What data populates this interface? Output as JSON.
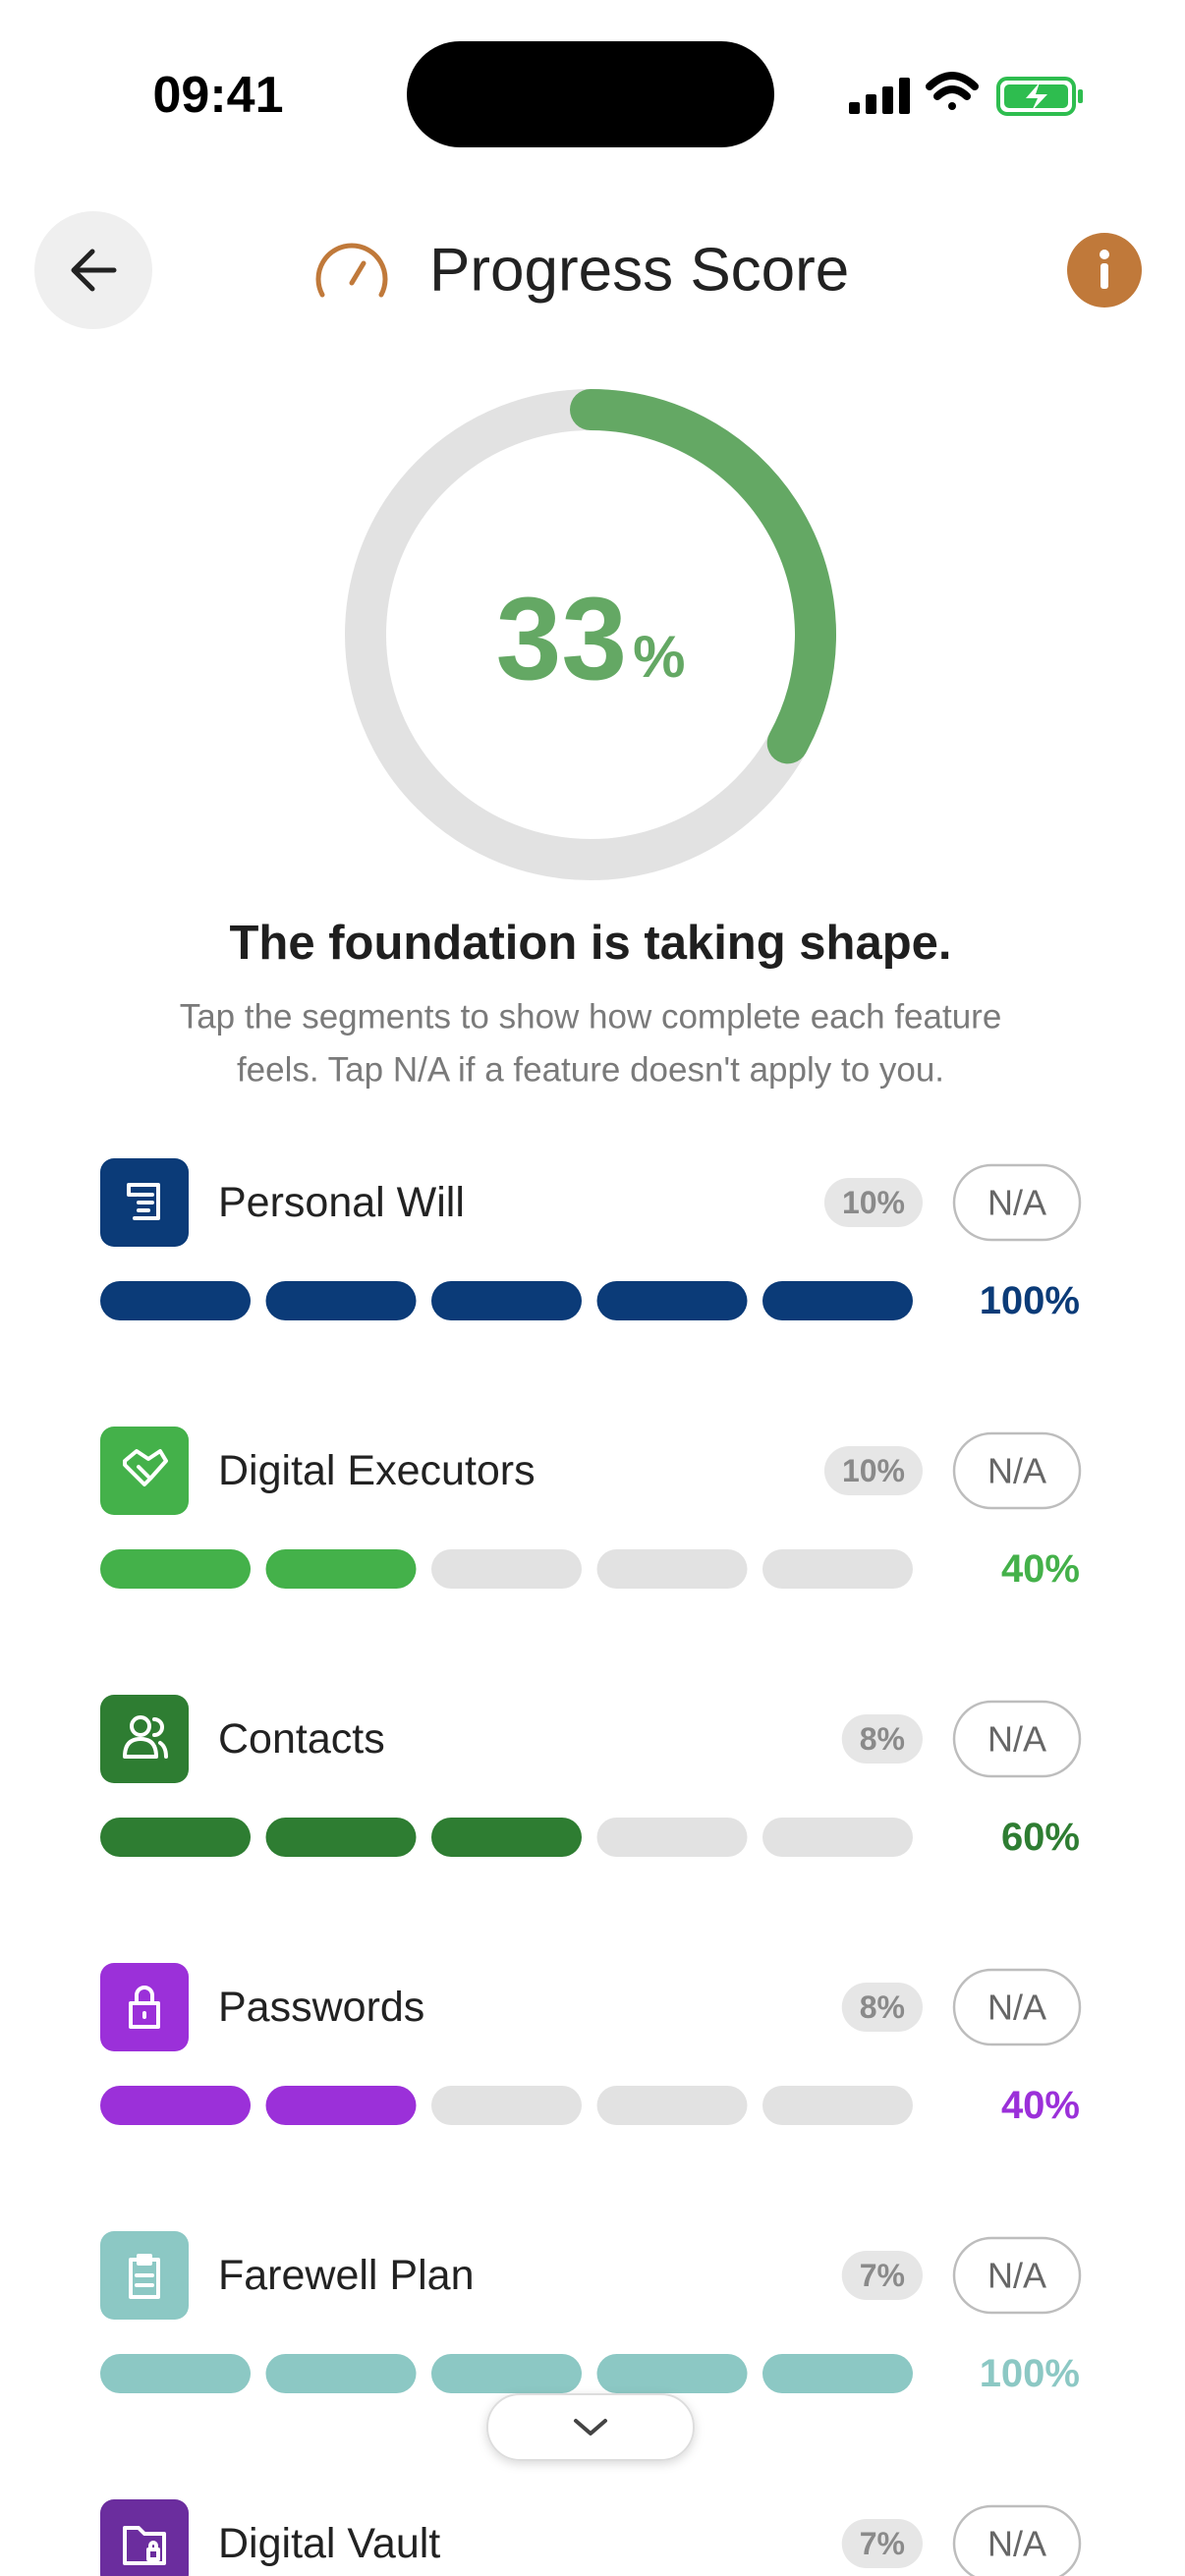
{
  "status_bar": {
    "time": "09:41"
  },
  "header": {
    "title": "Progress Score"
  },
  "score": {
    "value": 33,
    "unit": "%",
    "color": "#64a864"
  },
  "message": {
    "heading": "The foundation is taking shape.",
    "body": [
      "Tap the segments to show how complete each feature",
      "feels. Tap N/A if a feature doesn't apply to you."
    ]
  },
  "na_label": "N/A",
  "features": [
    {
      "name": "Personal Will",
      "weight": "10%",
      "progress": 100,
      "progress_label": "100%",
      "color": "#0b3b78"
    },
    {
      "name": "Digital Executors",
      "weight": "10%",
      "progress": 40,
      "progress_label": "40%",
      "color": "#44b14a"
    },
    {
      "name": "Contacts",
      "weight": "8%",
      "progress": 60,
      "progress_label": "60%",
      "color": "#2e7d32"
    },
    {
      "name": "Passwords",
      "weight": "8%",
      "progress": 40,
      "progress_label": "40%",
      "color": "#9b30d9"
    },
    {
      "name": "Farewell Plan",
      "weight": "7%",
      "progress": 100,
      "progress_label": "100%",
      "color": "#8cc8c4"
    },
    {
      "name": "Digital Vault",
      "weight": "7%",
      "color": "#6b2d9e"
    }
  ]
}
